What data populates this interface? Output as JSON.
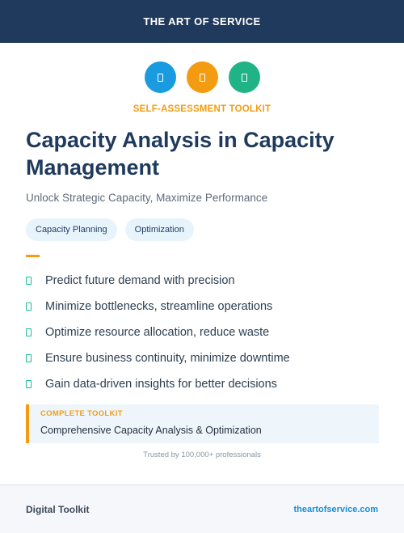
{
  "header": {
    "brand": "THE ART OF SERVICE"
  },
  "icons": [
    {
      "name": "target-icon",
      "color": "#1a9be0"
    },
    {
      "name": "chart-icon",
      "color": "#f39c12"
    },
    {
      "name": "check-icon",
      "color": "#1fb386"
    }
  ],
  "hero": {
    "eyebrow": "SELF-ASSESSMENT TOOLKIT",
    "title": "Capacity Analysis in Capacity Management",
    "subtitle": "Unlock Strategic Capacity, Maximize Performance"
  },
  "tags": [
    "Capacity Planning",
    "Optimization"
  ],
  "features": [
    "Predict future demand with precision",
    "Minimize bottlenecks, streamline operations",
    "Optimize resource allocation, reduce waste",
    "Ensure business continuity, minimize downtime",
    "Gain data-driven insights for better decisions"
  ],
  "callout": {
    "label": "COMPLETE TOOLKIT",
    "text": "Comprehensive Capacity Analysis & Optimization"
  },
  "trusted": "Trusted by 100,000+ professionals",
  "footer": {
    "left": "Digital Toolkit",
    "right": "theartofservice.com"
  },
  "colors": {
    "navy": "#1f3a5c",
    "accent_orange": "#f39c12",
    "accent_teal": "#1abc9c",
    "link_blue": "#1a8fd6"
  }
}
